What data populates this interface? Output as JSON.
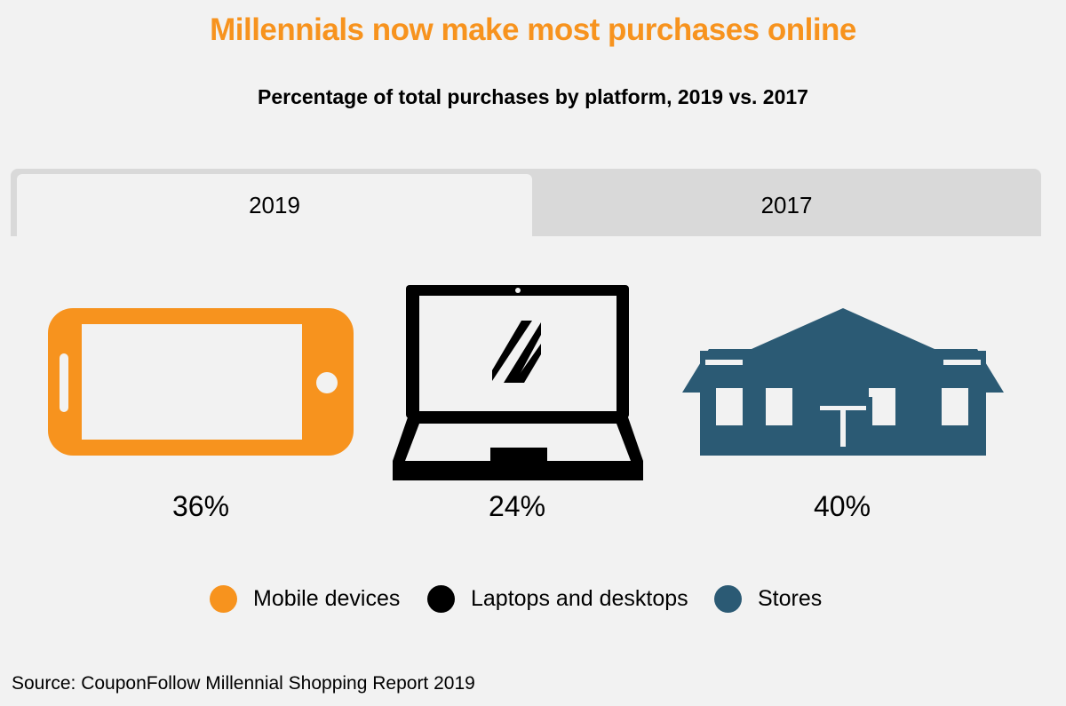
{
  "colors": {
    "accent": "#f7931e",
    "mobile": "#f7931e",
    "laptops": "#000000",
    "stores": "#2b5a74"
  },
  "title": "Millennials now make most purchases online",
  "subtitle": "Percentage of  total purchases by platform,  2019 vs. 2017",
  "tabs": [
    {
      "label": "2019",
      "active": true
    },
    {
      "label": "2017",
      "active": false
    }
  ],
  "icons": [
    "smartphone-icon",
    "laptop-icon",
    "store-icon"
  ],
  "chart_data": {
    "type": "table",
    "title": "Millennials now make most purchases online",
    "subtitle": "Percentage of  total purchases by platform,  2019 vs. 2017",
    "year": "2019",
    "categories": [
      "Mobile devices",
      "Laptops and desktops",
      "Stores"
    ],
    "values": [
      36,
      24,
      40
    ],
    "labels": [
      "36%",
      "24%",
      "40%"
    ],
    "legend": [
      "Mobile devices",
      "Laptops and desktops",
      "Stores"
    ],
    "legend_position": "bottom"
  },
  "source": "Source:  CouponFollow Millennial Shopping Report 2019"
}
